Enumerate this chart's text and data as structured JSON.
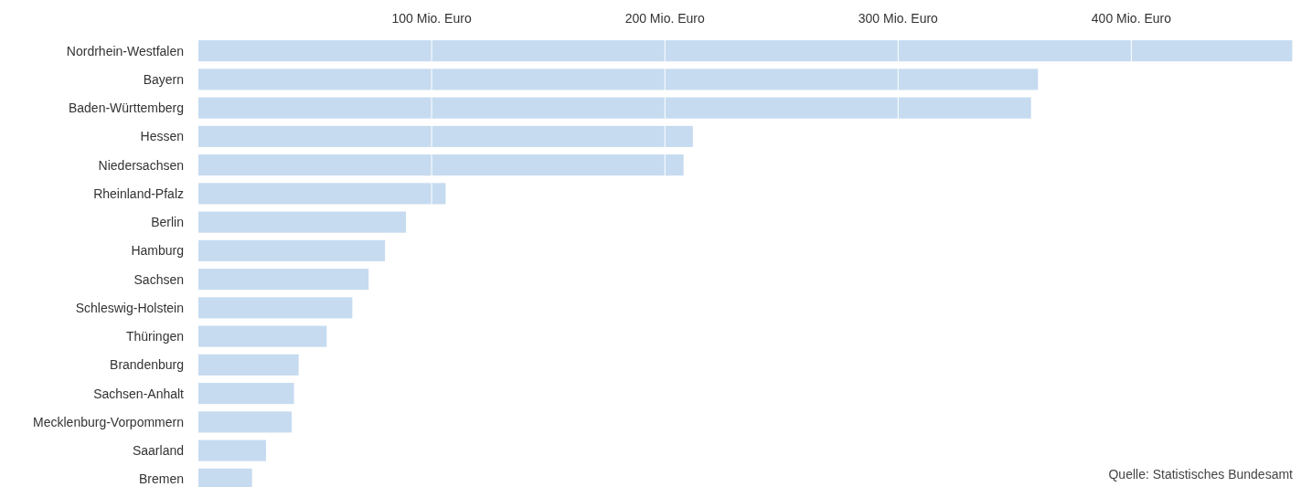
{
  "chart_data": {
    "type": "bar",
    "orientation": "horizontal",
    "categories": [
      "Nordrhein-Westfalen",
      "Bayern",
      "Baden-Württemberg",
      "Hessen",
      "Niedersachsen",
      "Rheinland-Pfalz",
      "Berlin",
      "Hamburg",
      "Sachsen",
      "Schleswig-Holstein",
      "Thüringen",
      "Brandenburg",
      "Sachsen-Anhalt",
      "Mecklenburg-Vorpommern",
      "Saarland",
      "Bremen"
    ],
    "values": [
      469,
      360,
      357,
      212,
      208,
      106,
      89,
      80,
      73,
      66,
      55,
      43,
      41,
      40,
      29,
      23
    ],
    "color": "#c6dbf0",
    "xlim": [
      0,
      470
    ],
    "xticks": [
      {
        "value": 100,
        "label": "100 Mio. Euro"
      },
      {
        "value": 200,
        "label": "200 Mio. Euro"
      },
      {
        "value": 300,
        "label": "300 Mio. Euro"
      },
      {
        "value": 400,
        "label": "400 Mio. Euro"
      }
    ],
    "grid": "x",
    "annotations": [
      "Quelle: Statistisches Bundesamt"
    ]
  }
}
